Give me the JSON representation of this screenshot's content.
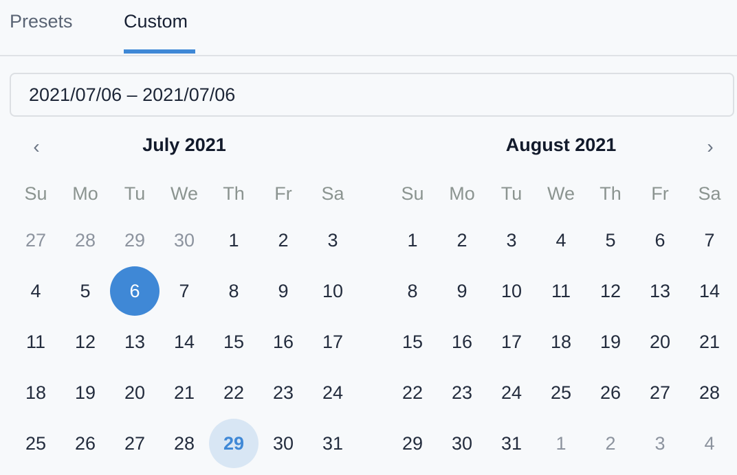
{
  "tabs": [
    {
      "label": "Presets",
      "active": false
    },
    {
      "label": "Custom",
      "active": true
    }
  ],
  "range_input": {
    "value": "2021/07/06  –  2021/07/06"
  },
  "colors": {
    "accent": "#3f88d6",
    "today_bg": "#d8e6f4"
  },
  "icons": {
    "prev": "chevron-left-icon",
    "next": "chevron-right-icon"
  },
  "weekdays": [
    "Su",
    "Mo",
    "Tu",
    "We",
    "Th",
    "Fr",
    "Sa"
  ],
  "months": [
    {
      "title": "July 2021",
      "weeks": [
        [
          {
            "d": "27",
            "out": true
          },
          {
            "d": "28",
            "out": true
          },
          {
            "d": "29",
            "out": true
          },
          {
            "d": "30",
            "out": true
          },
          {
            "d": "1"
          },
          {
            "d": "2"
          },
          {
            "d": "3"
          }
        ],
        [
          {
            "d": "4"
          },
          {
            "d": "5"
          },
          {
            "d": "6",
            "selected": true
          },
          {
            "d": "7"
          },
          {
            "d": "8"
          },
          {
            "d": "9"
          },
          {
            "d": "10"
          }
        ],
        [
          {
            "d": "11"
          },
          {
            "d": "12"
          },
          {
            "d": "13"
          },
          {
            "d": "14"
          },
          {
            "d": "15"
          },
          {
            "d": "16"
          },
          {
            "d": "17"
          }
        ],
        [
          {
            "d": "18"
          },
          {
            "d": "19"
          },
          {
            "d": "20"
          },
          {
            "d": "21"
          },
          {
            "d": "22"
          },
          {
            "d": "23"
          },
          {
            "d": "24"
          }
        ],
        [
          {
            "d": "25"
          },
          {
            "d": "26"
          },
          {
            "d": "27"
          },
          {
            "d": "28"
          },
          {
            "d": "29",
            "today": true
          },
          {
            "d": "30"
          },
          {
            "d": "31"
          }
        ]
      ]
    },
    {
      "title": "August 2021",
      "weeks": [
        [
          {
            "d": "1"
          },
          {
            "d": "2"
          },
          {
            "d": "3"
          },
          {
            "d": "4"
          },
          {
            "d": "5"
          },
          {
            "d": "6"
          },
          {
            "d": "7"
          }
        ],
        [
          {
            "d": "8"
          },
          {
            "d": "9"
          },
          {
            "d": "10"
          },
          {
            "d": "11"
          },
          {
            "d": "12"
          },
          {
            "d": "13"
          },
          {
            "d": "14"
          }
        ],
        [
          {
            "d": "15"
          },
          {
            "d": "16"
          },
          {
            "d": "17"
          },
          {
            "d": "18"
          },
          {
            "d": "19"
          },
          {
            "d": "20"
          },
          {
            "d": "21"
          }
        ],
        [
          {
            "d": "22"
          },
          {
            "d": "23"
          },
          {
            "d": "24"
          },
          {
            "d": "25"
          },
          {
            "d": "26"
          },
          {
            "d": "27"
          },
          {
            "d": "28"
          }
        ],
        [
          {
            "d": "29"
          },
          {
            "d": "30"
          },
          {
            "d": "31"
          },
          {
            "d": "1",
            "out": true
          },
          {
            "d": "2",
            "out": true
          },
          {
            "d": "3",
            "out": true
          },
          {
            "d": "4",
            "out": true
          }
        ]
      ]
    }
  ]
}
